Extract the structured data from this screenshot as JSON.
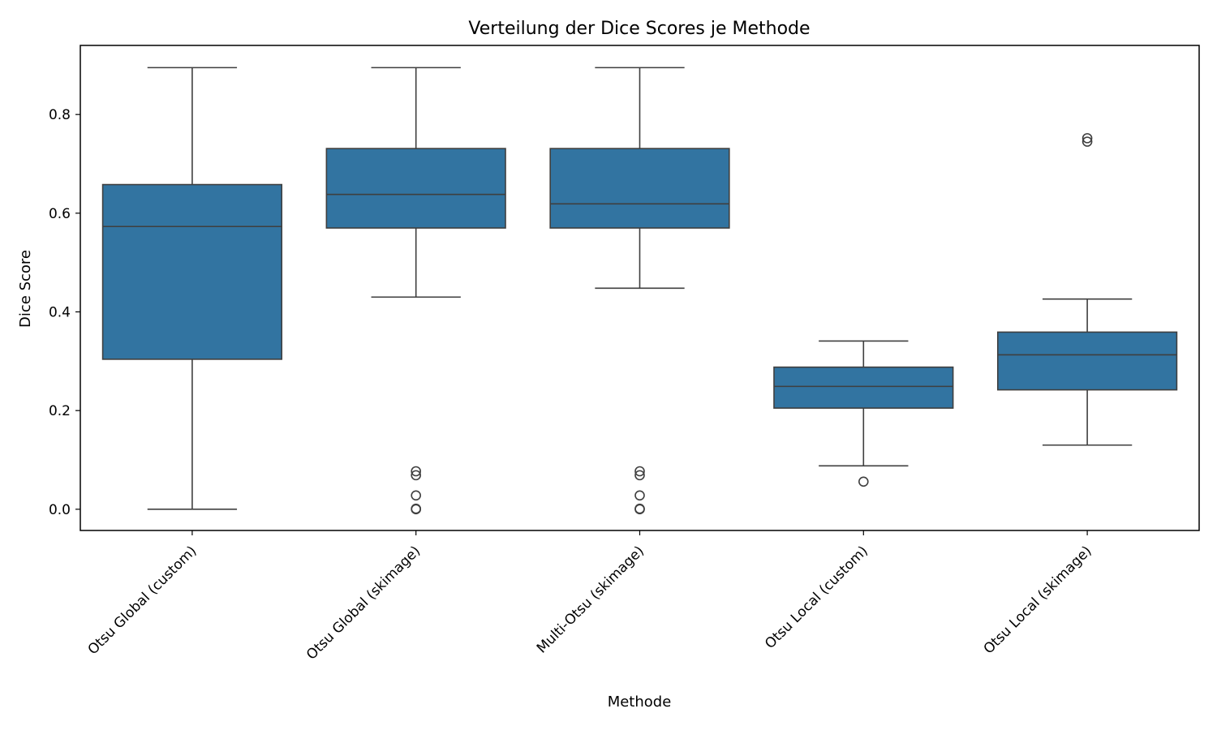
{
  "chart_data": {
    "type": "box",
    "title": "Verteilung der Dice Scores je Methode",
    "xlabel": "Methode",
    "ylabel": "Dice Score",
    "ylim": [
      -0.043,
      0.94
    ],
    "yticks": [
      "0.0",
      "0.2",
      "0.4",
      "0.6",
      "0.8"
    ],
    "ytick_values": [
      0.0,
      0.2,
      0.4,
      0.6,
      0.8
    ],
    "grid": false,
    "box_color": "#3274a1",
    "line_color": "#3f3f3f",
    "categories": [
      "Otsu Global (custom)",
      "Otsu Global (skimage)",
      "Multi-Otsu (skimage)",
      "Otsu Local (custom)",
      "Otsu Local (skimage)"
    ],
    "boxes": [
      {
        "whisker_low": 0.0,
        "q1": 0.304,
        "median": 0.573,
        "q3": 0.658,
        "whisker_high": 0.895,
        "outliers": []
      },
      {
        "whisker_low": 0.43,
        "q1": 0.57,
        "median": 0.638,
        "q3": 0.731,
        "whisker_high": 0.895,
        "outliers": [
          0.077,
          0.069,
          0.028,
          0.001,
          0.0
        ]
      },
      {
        "whisker_low": 0.448,
        "q1": 0.57,
        "median": 0.619,
        "q3": 0.731,
        "whisker_high": 0.895,
        "outliers": [
          0.077,
          0.069,
          0.028,
          0.001,
          0.0
        ]
      },
      {
        "whisker_low": 0.088,
        "q1": 0.205,
        "median": 0.249,
        "q3": 0.288,
        "whisker_high": 0.341,
        "outliers": [
          0.056
        ]
      },
      {
        "whisker_low": 0.13,
        "q1": 0.242,
        "median": 0.313,
        "q3": 0.359,
        "whisker_high": 0.426,
        "outliers": [
          0.752,
          0.745
        ]
      }
    ]
  }
}
